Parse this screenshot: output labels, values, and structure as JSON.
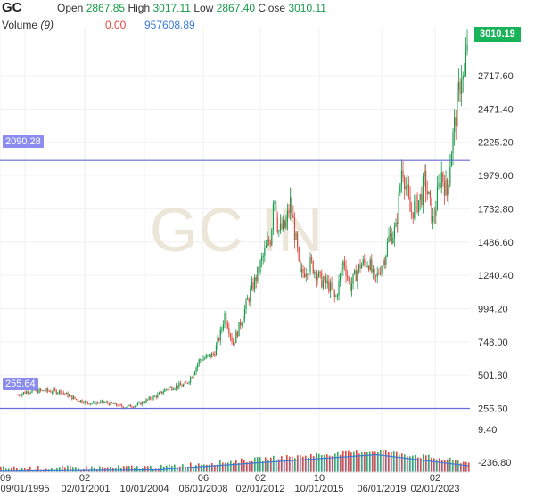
{
  "header": {
    "symbol": "GC",
    "open_label": "Open",
    "open_value": "2867.85",
    "high_label": "High",
    "high_value": "3017.11",
    "low_label": "Low",
    "low_value": "2867.40",
    "close_label": "Close",
    "close_value": "3010.11",
    "volume_label": "Volume",
    "volume_period": "(9)",
    "volume_change": "0.00",
    "volume_value": "957608.89"
  },
  "watermark": "GC IN",
  "colors": {
    "up": "#169a48",
    "down": "#e0463d",
    "line": "#6a6ad8",
    "volume_line": "#3a7ad8",
    "badge": "#8c8cf0",
    "last": "#19b45a"
  },
  "chart_data": {
    "type": "candlestick",
    "price_axis_ticks": [
      "2717.60",
      "2471.40",
      "2225.20",
      "1979.00",
      "1732.80",
      "1486.60",
      "1240.40",
      "994.20",
      "748.00",
      "501.80",
      "255.60"
    ],
    "volume_axis_ticks": [
      "9.40",
      "-236.80"
    ],
    "x_tick_labels": [
      "09",
      "09/01/1995",
      "02",
      "02/01/2001",
      "10/01/2004",
      "06",
      "06/01/2008",
      "02",
      "02/01/2012",
      "10/01/2015",
      "10",
      "06/01/2019",
      "02/01/2023",
      "02"
    ],
    "last_price": "3010.19",
    "horizontal_lines": [
      {
        "label": "2090.28",
        "value": 2090.28
      },
      {
        "label": "255.64",
        "value": 255.64
      }
    ],
    "ylim": [
      180,
      3080
    ],
    "series": [
      {
        "date": "1993-09",
        "price": 355
      },
      {
        "date": "1994-06",
        "price": 385
      },
      {
        "date": "1995-09",
        "price": 385
      },
      {
        "date": "1996-09",
        "price": 380
      },
      {
        "date": "1997-09",
        "price": 325
      },
      {
        "date": "1998-09",
        "price": 295
      },
      {
        "date": "1999-09",
        "price": 300
      },
      {
        "date": "2000-06",
        "price": 285
      },
      {
        "date": "2001-02",
        "price": 265
      },
      {
        "date": "2002-01",
        "price": 280
      },
      {
        "date": "2002-10",
        "price": 318
      },
      {
        "date": "2003-06",
        "price": 350
      },
      {
        "date": "2004-02",
        "price": 400
      },
      {
        "date": "2004-10",
        "price": 420
      },
      {
        "date": "2005-06",
        "price": 430
      },
      {
        "date": "2005-12",
        "price": 510
      },
      {
        "date": "2006-06",
        "price": 620
      },
      {
        "date": "2006-12",
        "price": 630
      },
      {
        "date": "2007-06",
        "price": 660
      },
      {
        "date": "2007-12",
        "price": 830
      },
      {
        "date": "2008-03",
        "price": 960
      },
      {
        "date": "2008-10",
        "price": 730
      },
      {
        "date": "2009-06",
        "price": 940
      },
      {
        "date": "2009-12",
        "price": 1100
      },
      {
        "date": "2010-06",
        "price": 1240
      },
      {
        "date": "2010-12",
        "price": 1400
      },
      {
        "date": "2011-06",
        "price": 1530
      },
      {
        "date": "2011-08",
        "price": 1880
      },
      {
        "date": "2011-12",
        "price": 1570
      },
      {
        "date": "2012-06",
        "price": 1600
      },
      {
        "date": "2012-10",
        "price": 1780
      },
      {
        "date": "2013-04",
        "price": 1420
      },
      {
        "date": "2013-06",
        "price": 1230
      },
      {
        "date": "2014-03",
        "price": 1330
      },
      {
        "date": "2014-12",
        "price": 1200
      },
      {
        "date": "2015-06",
        "price": 1170
      },
      {
        "date": "2015-12",
        "price": 1060
      },
      {
        "date": "2016-07",
        "price": 1360
      },
      {
        "date": "2016-12",
        "price": 1150
      },
      {
        "date": "2017-09",
        "price": 1320
      },
      {
        "date": "2018-04",
        "price": 1340
      },
      {
        "date": "2018-09",
        "price": 1190
      },
      {
        "date": "2019-06",
        "price": 1400
      },
      {
        "date": "2019-09",
        "price": 1520
      },
      {
        "date": "2020-03",
        "price": 1580
      },
      {
        "date": "2020-08",
        "price": 2070
      },
      {
        "date": "2021-03",
        "price": 1700
      },
      {
        "date": "2021-12",
        "price": 1820
      },
      {
        "date": "2022-03",
        "price": 1950
      },
      {
        "date": "2022-10",
        "price": 1640
      },
      {
        "date": "2023-05",
        "price": 2000
      },
      {
        "date": "2023-10",
        "price": 1840
      },
      {
        "date": "2023-12",
        "price": 2070
      },
      {
        "date": "2024-04",
        "price": 2350
      },
      {
        "date": "2024-10",
        "price": 2750
      },
      {
        "date": "2024-12",
        "price": 2640
      },
      {
        "date": "2025-03",
        "price": 3010
      }
    ]
  }
}
